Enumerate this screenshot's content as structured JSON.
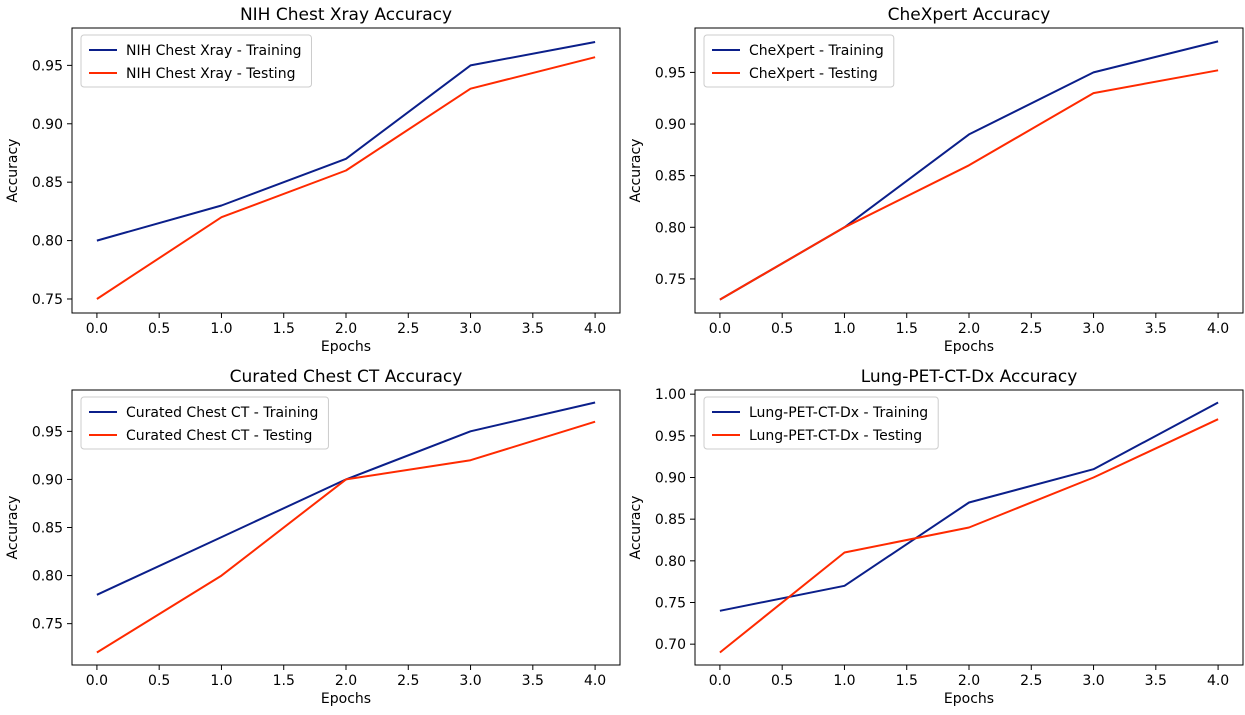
{
  "colors": {
    "training": "#0b1f8a",
    "testing": "#ff2a00"
  },
  "chart_data": [
    {
      "type": "line",
      "title": "NIH Chest Xray Accuracy",
      "xlabel": "Epochs",
      "ylabel": "Accuracy",
      "x": [
        0,
        1,
        2,
        3,
        4
      ],
      "xlim": [
        -0.2,
        4.2
      ],
      "ylim": [
        0.738,
        0.982
      ],
      "xticks": [
        "0.0",
        "0.5",
        "1.0",
        "1.5",
        "2.0",
        "2.5",
        "3.0",
        "3.5",
        "4.0"
      ],
      "yticks": [
        "0.75",
        "0.80",
        "0.85",
        "0.90",
        "0.95"
      ],
      "grid": false,
      "legend": "top-left",
      "series": [
        {
          "name": "NIH Chest Xray - Training",
          "values": [
            0.8,
            0.83,
            0.87,
            0.95,
            0.97
          ]
        },
        {
          "name": "NIH Chest Xray - Testing",
          "values": [
            0.75,
            0.82,
            0.86,
            0.93,
            0.957
          ]
        }
      ]
    },
    {
      "type": "line",
      "title": "CheXpert Accuracy",
      "xlabel": "Epochs",
      "ylabel": "Accuracy",
      "x": [
        0,
        1,
        2,
        3,
        4
      ],
      "xlim": [
        -0.2,
        4.2
      ],
      "ylim": [
        0.717,
        0.993
      ],
      "xticks": [
        "0.0",
        "0.5",
        "1.0",
        "1.5",
        "2.0",
        "2.5",
        "3.0",
        "3.5",
        "4.0"
      ],
      "yticks": [
        "0.75",
        "0.80",
        "0.85",
        "0.90",
        "0.95"
      ],
      "grid": false,
      "legend": "top-left",
      "series": [
        {
          "name": "CheXpert - Training",
          "values": [
            0.73,
            0.8,
            0.89,
            0.95,
            0.98
          ]
        },
        {
          "name": "CheXpert - Testing",
          "values": [
            0.73,
            0.8,
            0.86,
            0.93,
            0.952
          ]
        }
      ]
    },
    {
      "type": "line",
      "title": "Curated Chest CT Accuracy",
      "xlabel": "Epochs",
      "ylabel": "Accuracy",
      "x": [
        0,
        1,
        2,
        3,
        4
      ],
      "xlim": [
        -0.2,
        4.2
      ],
      "ylim": [
        0.707,
        0.993
      ],
      "xticks": [
        "0.0",
        "0.5",
        "1.0",
        "1.5",
        "2.0",
        "2.5",
        "3.0",
        "3.5",
        "4.0"
      ],
      "yticks": [
        "0.75",
        "0.80",
        "0.85",
        "0.90",
        "0.95"
      ],
      "grid": false,
      "legend": "top-left",
      "series": [
        {
          "name": "Curated Chest CT - Training",
          "values": [
            0.78,
            0.84,
            0.9,
            0.95,
            0.98
          ]
        },
        {
          "name": "Curated Chest CT - Testing",
          "values": [
            0.72,
            0.8,
            0.9,
            0.92,
            0.96
          ]
        }
      ]
    },
    {
      "type": "line",
      "title": "Lung-PET-CT-Dx Accuracy",
      "xlabel": "Epochs",
      "ylabel": "Accuracy",
      "x": [
        0,
        1,
        2,
        3,
        4
      ],
      "xlim": [
        -0.2,
        4.2
      ],
      "ylim": [
        0.675,
        1.005
      ],
      "xticks": [
        "0.0",
        "0.5",
        "1.0",
        "1.5",
        "2.0",
        "2.5",
        "3.0",
        "3.5",
        "4.0"
      ],
      "yticks": [
        "0.70",
        "0.75",
        "0.80",
        "0.85",
        "0.90",
        "0.95",
        "1.00"
      ],
      "grid": false,
      "legend": "top-left",
      "series": [
        {
          "name": "Lung-PET-CT-Dx - Training",
          "values": [
            0.74,
            0.77,
            0.87,
            0.91,
            0.99
          ]
        },
        {
          "name": "Lung-PET-CT-Dx - Testing",
          "values": [
            0.69,
            0.81,
            0.84,
            0.9,
            0.97
          ]
        }
      ]
    }
  ]
}
